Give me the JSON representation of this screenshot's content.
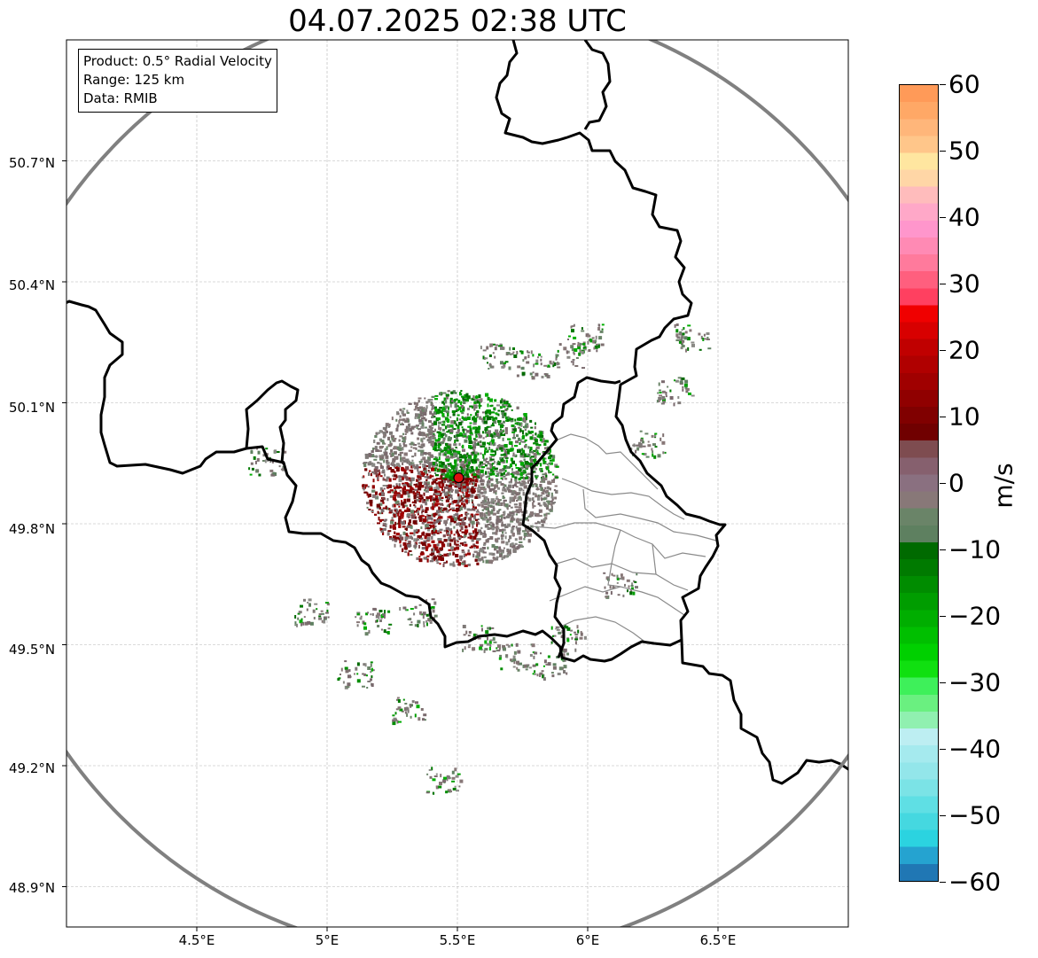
{
  "title": "04.07.2025 02:38 UTC",
  "info": {
    "product": "Product: 0.5° Radial Velocity",
    "range": "Range: 125 km",
    "source": "Data: RMIB"
  },
  "map": {
    "lon_range": [
      4.0,
      7.0
    ],
    "lat_range": [
      48.8,
      51.0
    ],
    "radar_site": {
      "lon": 5.505,
      "lat": 49.914
    },
    "range_ring_color": "#808080",
    "x_ticks": [
      "4.5°E",
      "5°E",
      "5.5°E",
      "6°E",
      "6.5°E"
    ],
    "y_ticks": [
      "50.7°N",
      "50.4°N",
      "50.1°N",
      "49.8°N",
      "49.5°N",
      "49.2°N",
      "48.9°N"
    ]
  },
  "colorbar": {
    "unit": "m/s",
    "min": -60,
    "max": 60,
    "ticks": [
      "60",
      "50",
      "40",
      "30",
      "20",
      "10",
      "0",
      "−10",
      "−20",
      "−30",
      "−40",
      "−50",
      "−60"
    ],
    "colors": [
      "#2077b4",
      "#25a3d0",
      "#2bd3e0",
      "#45d8e0",
      "#5fdfe4",
      "#7be3e6",
      "#93e6ea",
      "#a5eaee",
      "#bdeef2",
      "#90f0b0",
      "#6af080",
      "#3ef05a",
      "#10e010",
      "#00d000",
      "#00bf00",
      "#00ae00",
      "#009d00",
      "#008c00",
      "#007a00",
      "#006a00",
      "#5e8060",
      "#6a8468",
      "#887878",
      "#8a7080",
      "#86606e",
      "#7e4c50",
      "#700000",
      "#800000",
      "#900000",
      "#a00000",
      "#b00000",
      "#c00000",
      "#d80000",
      "#f00000",
      "#ff4060",
      "#ff5f7e",
      "#ff7a9c",
      "#ff8ab4",
      "#ff96cc",
      "#ffa8c8",
      "#ffbcbc",
      "#ffd6a6",
      "#ffe6a0",
      "#ffc68a",
      "#ffb67a",
      "#ffa866",
      "#ff9a58"
    ]
  }
}
